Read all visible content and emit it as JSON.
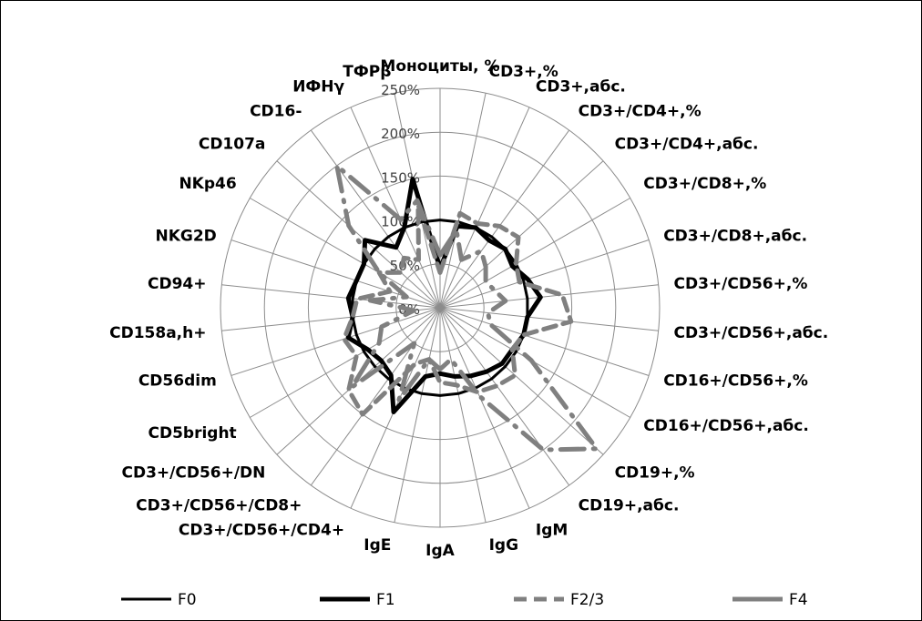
{
  "chart_data": {
    "type": "radar",
    "title": "",
    "categories": [
      "Моноциты, %",
      "CD3+,%",
      "CD3+,абс.",
      "CD3+/CD4+,%",
      "CD3+/CD4+,абс.",
      "CD3+/CD8+,%",
      "CD3+/CD8+,абс.",
      "CD3+/CD56+,%",
      "CD3+/CD56+,абс.",
      "CD16+/CD56+,%",
      "CD16+/CD56+,абс.",
      "CD19+,%",
      "CD19+,абс.",
      "IgM",
      "IgG",
      "IgA",
      "IgE",
      "CD3+/CD56+/CD4+",
      "CD3+/CD56+/CD8+",
      "CD3+/CD56+/DN",
      "CD5bright",
      "CD56dim",
      "CD158a,h+",
      "CD94+",
      "NKG2D",
      "NKp46",
      "CD107a",
      "CD16-",
      "ИФНγ",
      "ТФРβ"
    ],
    "tick_labels": [
      "0%",
      "50%",
      "100%",
      "150%",
      "200%",
      "250%"
    ],
    "rlim": [
      0,
      250
    ],
    "legend_position": "bottom",
    "series": [
      {
        "name": "F0",
        "color": "#000000",
        "style": "solid-thin",
        "values": [
          100,
          100,
          100,
          100,
          100,
          100,
          100,
          100,
          100,
          100,
          100,
          100,
          100,
          100,
          100,
          100,
          100,
          100,
          100,
          100,
          100,
          100,
          100,
          100,
          100,
          100,
          100,
          100,
          100,
          100
        ]
      },
      {
        "name": "F1",
        "color": "#000000",
        "style": "solid-thick",
        "values": [
          45,
          95,
          100,
          95,
          100,
          95,
          105,
          115,
          100,
          100,
          95,
          95,
          90,
          85,
          80,
          75,
          80,
          130,
          95,
          90,
          95,
          110,
          100,
          105,
          100,
          100,
          115,
          85,
          100,
          150
        ]
      },
      {
        "name": "F2/3",
        "color": "#808080",
        "style": "dashed",
        "values": [
          40,
          110,
          105,
          115,
          120,
          100,
          95,
          140,
          150,
          100,
          95,
          115,
          110,
          105,
          90,
          85,
          60,
          70,
          150,
          140,
          110,
          115,
          100,
          95,
          60,
          80,
          60,
          70,
          60,
          120
        ]
      },
      {
        "name": "F4",
        "color": "#808080",
        "style": "dash-dot",
        "values": [
          60,
          90,
          60,
          80,
          70,
          60,
          65,
          75,
          55,
          60,
          120,
          240,
          200,
          110,
          60,
          70,
          60,
          115,
          50,
          135,
          80,
          70,
          30,
          80,
          40,
          80,
          140,
          200,
          110,
          125
        ]
      }
    ]
  }
}
